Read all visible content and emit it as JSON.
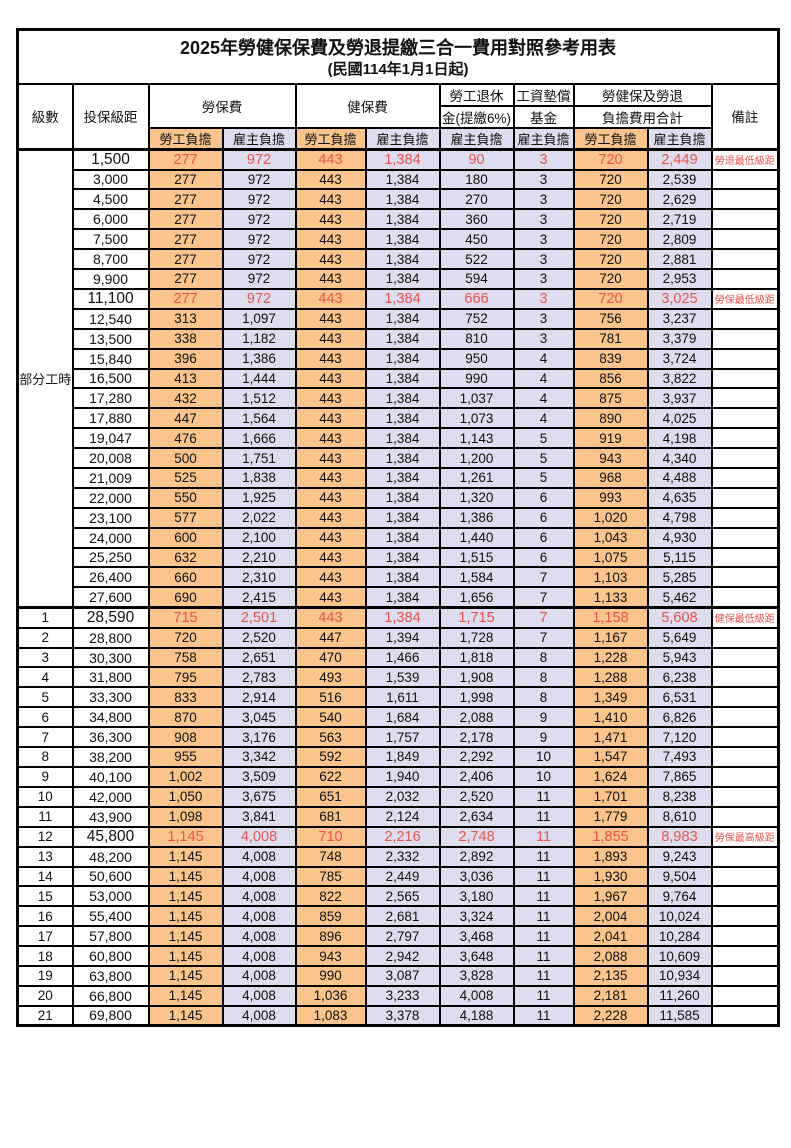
{
  "title": "2025年勞健保保費及勞退提繳三合一費用對照參考用表",
  "subtitle": "(民國114年1月1日起)",
  "colors": {
    "employee_fill": "#FAC48C",
    "employer_fill": "#DEDDF0",
    "highlight_text": "#E8524D"
  },
  "header": {
    "col_level": "級數",
    "col_bracket": "投保級距",
    "grp_labor": "勞保費",
    "grp_health": "健保費",
    "grp_pension_l1": "勞工退休",
    "grp_pension_l2": "金(提繳6%)",
    "grp_fund_l1": "工資墊償",
    "grp_fund_l2": "基金",
    "grp_total_l1": "勞健保及勞退",
    "grp_total_l2": "負擔費用合計",
    "col_remark": "備註",
    "sub_employee": "勞工負擔",
    "sub_employer": "雇主負擔"
  },
  "part_time_label": "部分工時",
  "rows": [
    {
      "level": "",
      "bracket": "1,500",
      "fees": [
        "277",
        "972",
        "443",
        "1,384",
        "90",
        "3",
        "720",
        "2,449"
      ],
      "remark": "勞退最低級距",
      "highlight": true
    },
    {
      "level": "",
      "bracket": "3,000",
      "fees": [
        "277",
        "972",
        "443",
        "1,384",
        "180",
        "3",
        "720",
        "2,539"
      ],
      "remark": ""
    },
    {
      "level": "",
      "bracket": "4,500",
      "fees": [
        "277",
        "972",
        "443",
        "1,384",
        "270",
        "3",
        "720",
        "2,629"
      ],
      "remark": ""
    },
    {
      "level": "",
      "bracket": "6,000",
      "fees": [
        "277",
        "972",
        "443",
        "1,384",
        "360",
        "3",
        "720",
        "2,719"
      ],
      "remark": ""
    },
    {
      "level": "",
      "bracket": "7,500",
      "fees": [
        "277",
        "972",
        "443",
        "1,384",
        "450",
        "3",
        "720",
        "2,809"
      ],
      "remark": ""
    },
    {
      "level": "",
      "bracket": "8,700",
      "fees": [
        "277",
        "972",
        "443",
        "1,384",
        "522",
        "3",
        "720",
        "2,881"
      ],
      "remark": ""
    },
    {
      "level": "",
      "bracket": "9,900",
      "fees": [
        "277",
        "972",
        "443",
        "1,384",
        "594",
        "3",
        "720",
        "2,953"
      ],
      "remark": ""
    },
    {
      "level": "",
      "bracket": "11,100",
      "fees": [
        "277",
        "972",
        "443",
        "1,384",
        "666",
        "3",
        "720",
        "3,025"
      ],
      "remark": "勞保最低級距",
      "highlight": true
    },
    {
      "level": "",
      "bracket": "12,540",
      "fees": [
        "313",
        "1,097",
        "443",
        "1,384",
        "752",
        "3",
        "756",
        "3,237"
      ],
      "remark": ""
    },
    {
      "level": "",
      "bracket": "13,500",
      "fees": [
        "338",
        "1,182",
        "443",
        "1,384",
        "810",
        "3",
        "781",
        "3,379"
      ],
      "remark": ""
    },
    {
      "level": "",
      "bracket": "15,840",
      "fees": [
        "396",
        "1,386",
        "443",
        "1,384",
        "950",
        "4",
        "839",
        "3,724"
      ],
      "remark": ""
    },
    {
      "level": "",
      "bracket": "16,500",
      "fees": [
        "413",
        "1,444",
        "443",
        "1,384",
        "990",
        "4",
        "856",
        "3,822"
      ],
      "remark": ""
    },
    {
      "level": "",
      "bracket": "17,280",
      "fees": [
        "432",
        "1,512",
        "443",
        "1,384",
        "1,037",
        "4",
        "875",
        "3,937"
      ],
      "remark": ""
    },
    {
      "level": "",
      "bracket": "17,880",
      "fees": [
        "447",
        "1,564",
        "443",
        "1,384",
        "1,073",
        "4",
        "890",
        "4,025"
      ],
      "remark": ""
    },
    {
      "level": "",
      "bracket": "19,047",
      "fees": [
        "476",
        "1,666",
        "443",
        "1,384",
        "1,143",
        "5",
        "919",
        "4,198"
      ],
      "remark": ""
    },
    {
      "level": "",
      "bracket": "20,008",
      "fees": [
        "500",
        "1,751",
        "443",
        "1,384",
        "1,200",
        "5",
        "943",
        "4,340"
      ],
      "remark": ""
    },
    {
      "level": "",
      "bracket": "21,009",
      "fees": [
        "525",
        "1,838",
        "443",
        "1,384",
        "1,261",
        "5",
        "968",
        "4,488"
      ],
      "remark": ""
    },
    {
      "level": "",
      "bracket": "22,000",
      "fees": [
        "550",
        "1,925",
        "443",
        "1,384",
        "1,320",
        "6",
        "993",
        "4,635"
      ],
      "remark": ""
    },
    {
      "level": "",
      "bracket": "23,100",
      "fees": [
        "577",
        "2,022",
        "443",
        "1,384",
        "1,386",
        "6",
        "1,020",
        "4,798"
      ],
      "remark": ""
    },
    {
      "level": "",
      "bracket": "24,000",
      "fees": [
        "600",
        "2,100",
        "443",
        "1,384",
        "1,440",
        "6",
        "1,043",
        "4,930"
      ],
      "remark": ""
    },
    {
      "level": "",
      "bracket": "25,250",
      "fees": [
        "632",
        "2,210",
        "443",
        "1,384",
        "1,515",
        "6",
        "1,075",
        "5,115"
      ],
      "remark": ""
    },
    {
      "level": "",
      "bracket": "26,400",
      "fees": [
        "660",
        "2,310",
        "443",
        "1,384",
        "1,584",
        "7",
        "1,103",
        "5,285"
      ],
      "remark": ""
    },
    {
      "level": "",
      "bracket": "27,600",
      "fees": [
        "690",
        "2,415",
        "443",
        "1,384",
        "1,656",
        "7",
        "1,133",
        "5,462"
      ],
      "remark": ""
    },
    {
      "level": "1",
      "bracket": "28,590",
      "fees": [
        "715",
        "2,501",
        "443",
        "1,384",
        "1,715",
        "7",
        "1,158",
        "5,608"
      ],
      "remark": "健保最低級距",
      "highlight": true,
      "thick_top": true
    },
    {
      "level": "2",
      "bracket": "28,800",
      "fees": [
        "720",
        "2,520",
        "447",
        "1,394",
        "1,728",
        "7",
        "1,167",
        "5,649"
      ],
      "remark": ""
    },
    {
      "level": "3",
      "bracket": "30,300",
      "fees": [
        "758",
        "2,651",
        "470",
        "1,466",
        "1,818",
        "8",
        "1,228",
        "5,943"
      ],
      "remark": ""
    },
    {
      "level": "4",
      "bracket": "31,800",
      "fees": [
        "795",
        "2,783",
        "493",
        "1,539",
        "1,908",
        "8",
        "1,288",
        "6,238"
      ],
      "remark": ""
    },
    {
      "level": "5",
      "bracket": "33,300",
      "fees": [
        "833",
        "2,914",
        "516",
        "1,611",
        "1,998",
        "8",
        "1,349",
        "6,531"
      ],
      "remark": ""
    },
    {
      "level": "6",
      "bracket": "34,800",
      "fees": [
        "870",
        "3,045",
        "540",
        "1,684",
        "2,088",
        "9",
        "1,410",
        "6,826"
      ],
      "remark": ""
    },
    {
      "level": "7",
      "bracket": "36,300",
      "fees": [
        "908",
        "3,176",
        "563",
        "1,757",
        "2,178",
        "9",
        "1,471",
        "7,120"
      ],
      "remark": ""
    },
    {
      "level": "8",
      "bracket": "38,200",
      "fees": [
        "955",
        "3,342",
        "592",
        "1,849",
        "2,292",
        "10",
        "1,547",
        "7,493"
      ],
      "remark": ""
    },
    {
      "level": "9",
      "bracket": "40,100",
      "fees": [
        "1,002",
        "3,509",
        "622",
        "1,940",
        "2,406",
        "10",
        "1,624",
        "7,865"
      ],
      "remark": ""
    },
    {
      "level": "10",
      "bracket": "42,000",
      "fees": [
        "1,050",
        "3,675",
        "651",
        "2,032",
        "2,520",
        "11",
        "1,701",
        "8,238"
      ],
      "remark": ""
    },
    {
      "level": "11",
      "bracket": "43,900",
      "fees": [
        "1,098",
        "3,841",
        "681",
        "2,124",
        "2,634",
        "11",
        "1,779",
        "8,610"
      ],
      "remark": ""
    },
    {
      "level": "12",
      "bracket": "45,800",
      "fees": [
        "1,145",
        "4,008",
        "710",
        "2,216",
        "2,748",
        "11",
        "1,855",
        "8,983"
      ],
      "remark": "勞保最高級距",
      "highlight": true
    },
    {
      "level": "13",
      "bracket": "48,200",
      "fees": [
        "1,145",
        "4,008",
        "748",
        "2,332",
        "2,892",
        "11",
        "1,893",
        "9,243"
      ],
      "remark": ""
    },
    {
      "level": "14",
      "bracket": "50,600",
      "fees": [
        "1,145",
        "4,008",
        "785",
        "2,449",
        "3,036",
        "11",
        "1,930",
        "9,504"
      ],
      "remark": ""
    },
    {
      "level": "15",
      "bracket": "53,000",
      "fees": [
        "1,145",
        "4,008",
        "822",
        "2,565",
        "3,180",
        "11",
        "1,967",
        "9,764"
      ],
      "remark": ""
    },
    {
      "level": "16",
      "bracket": "55,400",
      "fees": [
        "1,145",
        "4,008",
        "859",
        "2,681",
        "3,324",
        "11",
        "2,004",
        "10,024"
      ],
      "remark": ""
    },
    {
      "level": "17",
      "bracket": "57,800",
      "fees": [
        "1,145",
        "4,008",
        "896",
        "2,797",
        "3,468",
        "11",
        "2,041",
        "10,284"
      ],
      "remark": ""
    },
    {
      "level": "18",
      "bracket": "60,800",
      "fees": [
        "1,145",
        "4,008",
        "943",
        "2,942",
        "3,648",
        "11",
        "2,088",
        "10,609"
      ],
      "remark": ""
    },
    {
      "level": "19",
      "bracket": "63,800",
      "fees": [
        "1,145",
        "4,008",
        "990",
        "3,087",
        "3,828",
        "11",
        "2,135",
        "10,934"
      ],
      "remark": ""
    },
    {
      "level": "20",
      "bracket": "66,800",
      "fees": [
        "1,145",
        "4,008",
        "1,036",
        "3,233",
        "4,008",
        "11",
        "2,181",
        "11,260"
      ],
      "remark": ""
    },
    {
      "level": "21",
      "bracket": "69,800",
      "fees": [
        "1,145",
        "4,008",
        "1,083",
        "3,378",
        "4,188",
        "11",
        "2,228",
        "11,585"
      ],
      "remark": ""
    }
  ]
}
